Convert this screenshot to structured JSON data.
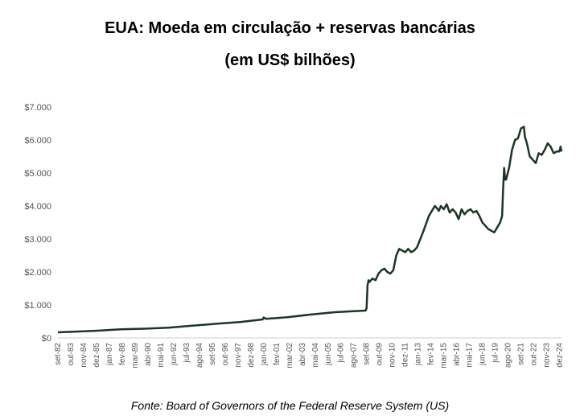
{
  "title": "EUA: Moeda em circulação + reservas bancárias",
  "subtitle": "(em US$ bilhões)",
  "source": "Fonte: Board of Governors of the Federal Reserve System (US)",
  "colors": {
    "line": "#1f3327",
    "axis": "#cfcfcf",
    "text": "#555555"
  },
  "chart_data": {
    "type": "line",
    "title": "EUA: Moeda em circulação + reservas bancárias",
    "subtitle": "(em US$ bilhões)",
    "xlabel": "",
    "ylabel": "",
    "ylim": [
      0,
      7000
    ],
    "grid": false,
    "y_ticks": [
      0,
      1000,
      2000,
      3000,
      4000,
      5000,
      6000,
      7000
    ],
    "y_tick_labels": [
      "$0",
      "$1.000",
      "$2.000",
      "$3.000",
      "$4.000",
      "$5.000",
      "$6.000",
      "$7.000"
    ],
    "x_tick_labels": [
      "set-82",
      "out-83",
      "nov-84",
      "dez-85",
      "jan-87",
      "fev-88",
      "mar-89",
      "abr-90",
      "mai-91",
      "jun-92",
      "jul-93",
      "ago-94",
      "set-95",
      "out-96",
      "nov-97",
      "dez-98",
      "jan-00",
      "fev-01",
      "mar-02",
      "abr-03",
      "mai-04",
      "jun-05",
      "jul-06",
      "ago-07",
      "set-08",
      "out-09",
      "nov-10",
      "dez-11",
      "jan-13",
      "fev-14",
      "mar-15",
      "abr-16",
      "mai-17",
      "jun-18",
      "jul-19",
      "ago-20",
      "set-21",
      "out-22",
      "nov-23",
      "dez-24"
    ],
    "series": [
      {
        "x": [
          "1982-09",
          "1984-01",
          "1986-01",
          "1988-01",
          "1990-01",
          "1992-01",
          "1994-01",
          "1996-01",
          "1998-01",
          "1999-12",
          "2000-01",
          "2000-03",
          "2001-01",
          "2002-01",
          "2004-01",
          "2006-01",
          "2008-08",
          "2008-09",
          "2008-10",
          "2008-11",
          "2008-12",
          "2009-03",
          "2009-06",
          "2009-09",
          "2009-12",
          "2010-03",
          "2010-06",
          "2010-09",
          "2010-12",
          "2011-03",
          "2011-06",
          "2011-09",
          "2011-12",
          "2012-03",
          "2012-06",
          "2012-09",
          "2012-12",
          "2013-06",
          "2013-12",
          "2014-03",
          "2014-06",
          "2014-09",
          "2014-10",
          "2014-12",
          "2015-03",
          "2015-06",
          "2015-09",
          "2015-12",
          "2016-03",
          "2016-06",
          "2016-09",
          "2016-12",
          "2017-03",
          "2017-06",
          "2017-09",
          "2017-12",
          "2018-03",
          "2018-06",
          "2018-09",
          "2018-12",
          "2019-03",
          "2019-06",
          "2019-09",
          "2019-12",
          "2020-02",
          "2020-03",
          "2020-04",
          "2020-05",
          "2020-06",
          "2020-09",
          "2020-12",
          "2021-03",
          "2021-06",
          "2021-09",
          "2021-12",
          "2022-01",
          "2022-03",
          "2022-06",
          "2022-09",
          "2022-12",
          "2023-03",
          "2023-06",
          "2023-09",
          "2023-12",
          "2024-03",
          "2024-06",
          "2024-09",
          "2024-12",
          "2025-01",
          "2025-02"
        ],
        "values": [
          170,
          190,
          220,
          260,
          280,
          310,
          370,
          430,
          480,
          560,
          620,
          580,
          600,
          630,
          710,
          780,
          830,
          900,
          1600,
          1750,
          1700,
          1800,
          1750,
          1950,
          2050,
          2100,
          2000,
          1950,
          2050,
          2500,
          2700,
          2650,
          2600,
          2700,
          2600,
          2650,
          2750,
          3200,
          3700,
          3850,
          4000,
          3900,
          3850,
          4000,
          3900,
          4050,
          3800,
          3900,
          3800,
          3600,
          3900,
          3750,
          3850,
          3900,
          3800,
          3850,
          3700,
          3500,
          3400,
          3300,
          3250,
          3200,
          3350,
          3500,
          3700,
          4500,
          5150,
          4800,
          4800,
          5150,
          5700,
          6000,
          6050,
          6350,
          6400,
          6100,
          5900,
          5500,
          5400,
          5300,
          5600,
          5550,
          5700,
          5900,
          5800,
          5600,
          5650,
          5650,
          5800,
          5650
        ]
      }
    ]
  }
}
